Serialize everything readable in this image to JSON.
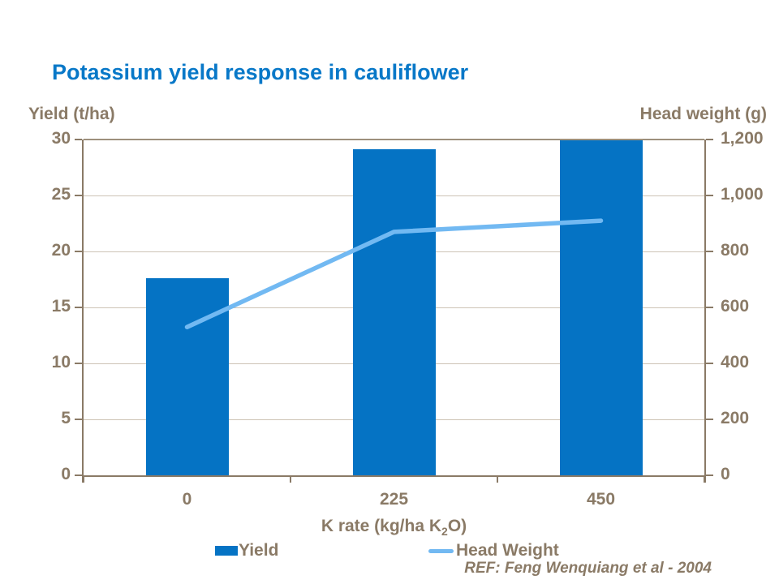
{
  "title": "Potassium yield response in cauliflower",
  "left_axis": {
    "label": "Yield (t/ha)",
    "tick_labels": [
      "30",
      "25",
      "20",
      "15",
      "10",
      "5",
      "0"
    ]
  },
  "right_axis": {
    "label": "Head weight (g)",
    "tick_labels": [
      "1,200",
      "1,000",
      "800",
      "600",
      "400",
      "200",
      "0"
    ]
  },
  "x_axis": {
    "categories": [
      "0",
      "225",
      "450"
    ],
    "title_prefix": "K rate (kg/ha K",
    "title_sub": "2",
    "title_suffix": "O)"
  },
  "legend": {
    "yield_label": "Yield",
    "head_weight_label": "Head Weight"
  },
  "reference": "REF: Feng Wenquiang et al - 2004",
  "colors": {
    "title_blue": "#0878C8",
    "bar_blue": "#0573C4",
    "line_light_blue": "#72B9F2",
    "text_brown": "#8A7A66",
    "axis_brown": "#8A7A66",
    "gridline_taupe": "#CDC3B5",
    "top_line_taupe": "#9D907C",
    "background": "#FFFFFF"
  },
  "chart_data": {
    "type": "bar",
    "subtype": "combo-bar-line-dual-axis",
    "title": "Potassium yield response in cauliflower",
    "xlabel": "K rate (kg/ha K2O)",
    "ylabel_left": "Yield (t/ha)",
    "ylabel_right": "Head weight (g)",
    "categories": [
      "0",
      "225",
      "450"
    ],
    "series": [
      {
        "name": "Yield",
        "type": "bar",
        "axis": "left",
        "values": [
          17.6,
          29.1,
          29.9
        ]
      },
      {
        "name": "Head Weight",
        "type": "line",
        "axis": "right",
        "values": [
          530,
          870,
          910
        ]
      }
    ],
    "ylim_left": [
      0,
      30
    ],
    "ytick_step_left": 5,
    "ylim_right": [
      0,
      1200
    ],
    "ytick_step_right": 200,
    "grid": true,
    "legend_position": "bottom",
    "reference": "REF: Feng Wenquiang et al - 2004"
  }
}
